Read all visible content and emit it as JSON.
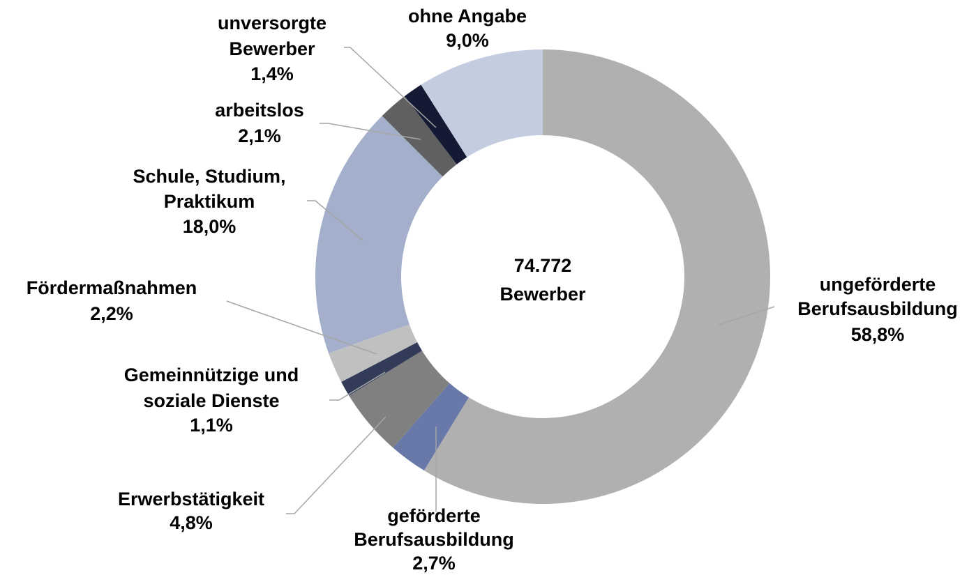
{
  "chart_data": {
    "type": "donut",
    "center_text": [
      "74.772",
      "Bewerber"
    ],
    "labels": [
      [
        "ungeförderte",
        "Berufsausbildung"
      ],
      [
        "geförderte",
        "Berufsausbildung"
      ],
      [
        "Erwerbstätigkeit"
      ],
      [
        "Gemeinnützige und",
        "soziale Dienste"
      ],
      [
        "Fördermaßnahmen"
      ],
      [
        "Schule, Studium,",
        "Praktikum"
      ],
      [
        "arbeitslos"
      ],
      [
        "unversorgte",
        "Bewerber"
      ],
      [
        "ohne Angabe"
      ]
    ],
    "values": [
      58.8,
      2.7,
      4.8,
      1.1,
      2.2,
      18.0,
      2.1,
      1.4,
      9.0
    ],
    "value_labels": [
      "58,8%",
      "2,7%",
      "4,8%",
      "1,1%",
      "2,2%",
      "18,0%",
      "2,1%",
      "1,4%",
      "9,0%"
    ],
    "colors": [
      "#b0b0b0",
      "#6878a8",
      "#808080",
      "#323c58",
      "#c0c0c0",
      "#a3afcb",
      "#606060",
      "#141a33",
      "#c4cde0"
    ]
  }
}
